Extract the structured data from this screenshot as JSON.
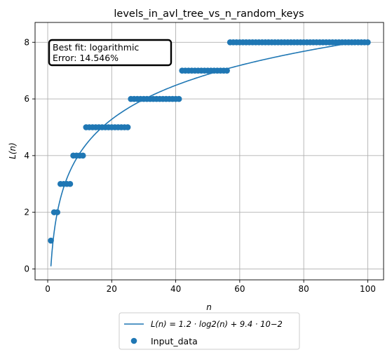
{
  "chart_data": {
    "type": "scatter",
    "title": "levels_in_avl_tree_vs_n_random_keys",
    "xlabel": "n",
    "ylabel": "L(n)",
    "xlim": [
      -3.95,
      104.95
    ],
    "ylim": [
      -0.3855,
      8.7
    ],
    "xticks": [
      0,
      20,
      40,
      60,
      80,
      100
    ],
    "yticks": [
      0,
      2,
      4,
      6,
      8
    ],
    "grid": true,
    "annotation": {
      "line1": "Best fit: logarithmic",
      "line2": "Error: 14.546%"
    },
    "legend": {
      "position": "below",
      "fit_label": "L(n) = 1.2 · log2(n) + 9.4 · 10−2",
      "data_label": "Input_data"
    },
    "fit": {
      "model": "logarithmic",
      "a": 1.2,
      "b": 0.094,
      "x_start": 1,
      "x_end": 100,
      "color": "#1f77b4"
    },
    "series": [
      {
        "name": "Input_data",
        "color": "#1f77b4",
        "x": [
          1,
          2,
          3,
          4,
          5,
          6,
          7,
          8,
          9,
          10,
          11,
          12,
          13,
          14,
          15,
          16,
          17,
          18,
          19,
          20,
          21,
          22,
          23,
          24,
          25,
          26,
          27,
          28,
          29,
          30,
          31,
          32,
          33,
          34,
          35,
          36,
          37,
          38,
          39,
          40,
          41,
          42,
          43,
          44,
          45,
          46,
          47,
          48,
          49,
          50,
          51,
          52,
          53,
          54,
          55,
          56,
          57,
          58,
          59,
          60,
          61,
          62,
          63,
          64,
          65,
          66,
          67,
          68,
          69,
          70,
          71,
          72,
          73,
          74,
          75,
          76,
          77,
          78,
          79,
          80,
          81,
          82,
          83,
          84,
          85,
          86,
          87,
          88,
          89,
          90,
          91,
          92,
          93,
          94,
          95,
          96,
          97,
          98,
          99,
          100
        ],
        "y": [
          1,
          2,
          2,
          3,
          3,
          3,
          3,
          4,
          4,
          4,
          4,
          5,
          5,
          5,
          5,
          5,
          5,
          5,
          5,
          5,
          5,
          5,
          5,
          5,
          5,
          6,
          6,
          6,
          6,
          6,
          6,
          6,
          6,
          6,
          6,
          6,
          6,
          6,
          6,
          6,
          6,
          7,
          7,
          7,
          7,
          7,
          7,
          7,
          7,
          7,
          7,
          7,
          7,
          7,
          7,
          7,
          8,
          8,
          8,
          8,
          8,
          8,
          8,
          8,
          8,
          8,
          8,
          8,
          8,
          8,
          8,
          8,
          8,
          8,
          8,
          8,
          8,
          8,
          8,
          8,
          8,
          8,
          8,
          8,
          8,
          8,
          8,
          8,
          8,
          8,
          8,
          8,
          8,
          8,
          8,
          8,
          8,
          8,
          8,
          8
        ]
      }
    ]
  }
}
